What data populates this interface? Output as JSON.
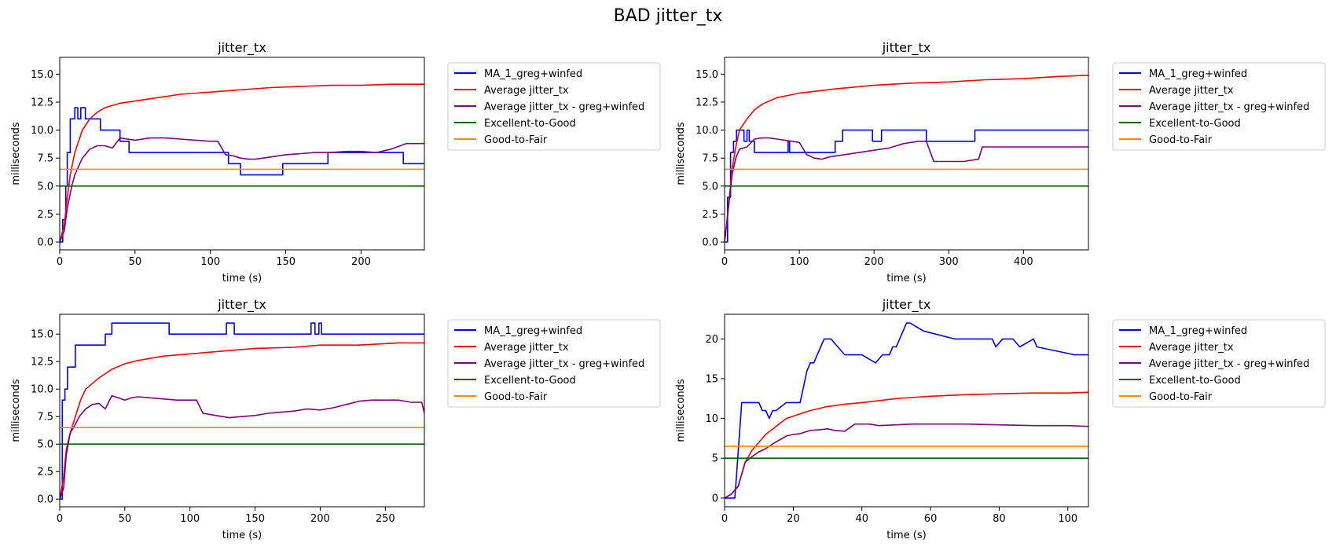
{
  "figure_title": "BAD jitter_tx",
  "colors": {
    "MA_1_greg+winfed": "#0000ff",
    "Average jitter_tx": "#ff0000",
    "Average jitter_tx - greg+winfed": "#800080",
    "Excellent-to-Good": "#006400",
    "Good-to-Fair": "#ff8c00"
  },
  "chart_data": [
    {
      "type": "line",
      "title": "jitter_tx",
      "xlabel": "time (s)",
      "ylabel": "milliseconds",
      "xlim": [
        0,
        242
      ],
      "ylim": [
        -0.7,
        16.5
      ],
      "xticks": [
        0,
        50,
        100,
        150,
        200
      ],
      "yticks": [
        "0.0",
        "2.5",
        "5.0",
        "7.5",
        "10.0",
        "12.5",
        "15.0"
      ],
      "grid": false,
      "legend": "outside-right",
      "series": [
        {
          "name": "MA_1_greg+winfed",
          "x": [
            0,
            2,
            2,
            4,
            4,
            5,
            5,
            7,
            7,
            10,
            10,
            12,
            12,
            14,
            14,
            15,
            15,
            17,
            17,
            22,
            22,
            27,
            27,
            40,
            40,
            46,
            46,
            100,
            100,
            112,
            112,
            120,
            120,
            148,
            148,
            178,
            178,
            215,
            215,
            228,
            228,
            242
          ],
          "y": [
            0,
            0,
            2,
            2,
            5,
            5,
            8,
            8,
            11,
            11,
            12,
            12,
            11,
            11,
            12,
            12,
            12,
            12,
            11,
            11,
            11,
            11,
            10,
            10,
            9,
            9,
            8,
            8,
            8,
            8,
            7,
            7,
            6,
            6,
            7,
            7,
            8,
            8,
            8,
            8,
            7,
            7
          ]
        },
        {
          "name": "Average jitter_tx",
          "x": [
            0,
            3,
            5,
            7,
            10,
            15,
            20,
            25,
            30,
            40,
            50,
            60,
            70,
            80,
            100,
            120,
            140,
            160,
            180,
            200,
            220,
            242
          ],
          "y": [
            0,
            1.5,
            4,
            6,
            8,
            10,
            11,
            11.6,
            12,
            12.4,
            12.6,
            12.8,
            13,
            13.2,
            13.4,
            13.6,
            13.8,
            13.9,
            14,
            14,
            14.1,
            14.1
          ]
        },
        {
          "name": "Average jitter_tx - greg+winfed",
          "x": [
            0,
            3,
            5,
            8,
            10,
            15,
            20,
            25,
            30,
            35,
            40,
            45,
            50,
            60,
            70,
            80,
            90,
            100,
            105,
            110,
            115,
            120,
            125,
            130,
            140,
            150,
            160,
            170,
            180,
            190,
            200,
            210,
            220,
            230,
            242
          ],
          "y": [
            0,
            1,
            3,
            5,
            6,
            7.5,
            8.3,
            8.6,
            8.6,
            8.4,
            9.3,
            9.2,
            9.1,
            9.3,
            9.3,
            9.2,
            9.1,
            9.0,
            9.0,
            7.8,
            7.7,
            7.5,
            7.4,
            7.4,
            7.6,
            7.8,
            7.9,
            8.0,
            8.0,
            8.1,
            8.1,
            8.0,
            8.3,
            8.8,
            8.8
          ]
        },
        {
          "name": "Excellent-to-Good",
          "x": [
            0,
            242
          ],
          "y": [
            5,
            5
          ]
        },
        {
          "name": "Good-to-Fair",
          "x": [
            0,
            242
          ],
          "y": [
            6.5,
            6.5
          ]
        }
      ]
    },
    {
      "type": "line",
      "title": "jitter_tx",
      "xlabel": "time (s)",
      "ylabel": "milliseconds",
      "xlim": [
        0,
        487
      ],
      "ylim": [
        -0.7,
        16.5
      ],
      "xticks": [
        0,
        100,
        200,
        300,
        400
      ],
      "yticks": [
        "0.0",
        "2.5",
        "5.0",
        "7.5",
        "10.0",
        "12.5",
        "15.0"
      ],
      "grid": false,
      "legend": "outside-right",
      "series": [
        {
          "name": "MA_1_greg+winfed",
          "x": [
            0,
            4,
            4,
            8,
            8,
            12,
            12,
            16,
            16,
            26,
            26,
            30,
            30,
            33,
            33,
            40,
            40,
            46,
            46,
            60,
            60,
            85,
            85,
            87,
            87,
            110,
            110,
            148,
            148,
            158,
            158,
            198,
            198,
            210,
            210,
            270,
            270,
            335,
            335,
            487
          ],
          "y": [
            0,
            0,
            4,
            4,
            8,
            8,
            9,
            9,
            10,
            10,
            9,
            9,
            10,
            10,
            9,
            9,
            8,
            8,
            8,
            8,
            8,
            8,
            9,
            9,
            8,
            8,
            8,
            8,
            9,
            9,
            10,
            10,
            9,
            9,
            10,
            10,
            9,
            9,
            10,
            10
          ]
        },
        {
          "name": "Average jitter_tx",
          "x": [
            0,
            5,
            10,
            15,
            20,
            30,
            40,
            50,
            70,
            100,
            150,
            200,
            250,
            300,
            350,
            400,
            450,
            487
          ],
          "y": [
            0,
            3,
            6.5,
            8.5,
            10,
            11,
            11.8,
            12.3,
            12.9,
            13.3,
            13.7,
            14,
            14.2,
            14.3,
            14.5,
            14.6,
            14.8,
            14.9
          ]
        },
        {
          "name": "Average jitter_tx - greg+winfed",
          "x": [
            0,
            5,
            10,
            15,
            20,
            30,
            40,
            50,
            60,
            70,
            80,
            90,
            100,
            110,
            120,
            130,
            140,
            150,
            160,
            180,
            200,
            220,
            240,
            260,
            270,
            280,
            300,
            320,
            340,
            345,
            360,
            400,
            440,
            487
          ],
          "y": [
            0,
            3,
            6,
            7.5,
            8.3,
            8.5,
            9.2,
            9.3,
            9.3,
            9.2,
            9.1,
            9.0,
            8.9,
            7.8,
            7.5,
            7.4,
            7.6,
            7.7,
            7.8,
            8.0,
            8.2,
            8.4,
            8.8,
            9.0,
            9.0,
            7.2,
            7.2,
            7.2,
            7.4,
            8.5,
            8.5,
            8.5,
            8.5,
            8.5
          ]
        },
        {
          "name": "Excellent-to-Good",
          "x": [
            0,
            487
          ],
          "y": [
            5,
            5
          ]
        },
        {
          "name": "Good-to-Fair",
          "x": [
            0,
            487
          ],
          "y": [
            6.5,
            6.5
          ]
        }
      ]
    },
    {
      "type": "line",
      "title": "jitter_tx",
      "xlabel": "time (s)",
      "ylabel": "milliseconds",
      "xlim": [
        0,
        280
      ],
      "ylim": [
        -0.7,
        16.8
      ],
      "xticks": [
        0,
        50,
        100,
        150,
        200,
        250
      ],
      "yticks": [
        "0.0",
        "2.5",
        "5.0",
        "7.5",
        "10.0",
        "12.5",
        "15.0"
      ],
      "grid": false,
      "legend": "outside-right",
      "series": [
        {
          "name": "MA_1_greg+winfed",
          "x": [
            0,
            2,
            2,
            4,
            4,
            6,
            6,
            12,
            12,
            17,
            17,
            23,
            23,
            35,
            35,
            40,
            40,
            84,
            84,
            128,
            128,
            134,
            134,
            193,
            193,
            196,
            196,
            199,
            199,
            201,
            201,
            280
          ],
          "y": [
            0,
            0,
            9,
            9,
            10,
            10,
            12,
            12,
            14,
            14,
            14,
            14,
            14,
            14,
            15,
            15,
            16,
            16,
            15,
            15,
            16,
            16,
            15,
            15,
            16,
            16,
            15,
            15,
            16,
            16,
            15,
            15
          ]
        },
        {
          "name": "Average jitter_tx",
          "x": [
            0,
            3,
            5,
            8,
            12,
            16,
            20,
            25,
            30,
            40,
            50,
            60,
            80,
            100,
            130,
            150,
            180,
            200,
            230,
            260,
            280
          ],
          "y": [
            0,
            2,
            4.5,
            6,
            7.5,
            9,
            10,
            10.5,
            11,
            11.8,
            12.3,
            12.6,
            13,
            13.2,
            13.5,
            13.7,
            13.8,
            14,
            14,
            14.2,
            14.2
          ]
        },
        {
          "name": "Average jitter_tx - greg+winfed",
          "x": [
            0,
            3,
            5,
            8,
            12,
            15,
            20,
            25,
            30,
            35,
            40,
            45,
            50,
            55,
            60,
            70,
            80,
            90,
            100,
            105,
            110,
            120,
            130,
            140,
            150,
            160,
            170,
            180,
            190,
            200,
            210,
            220,
            230,
            240,
            250,
            260,
            270,
            278,
            280
          ],
          "y": [
            0,
            1,
            4,
            6,
            6.8,
            7.5,
            8.2,
            8.6,
            8.7,
            8.2,
            9.4,
            9.2,
            9.0,
            9.2,
            9.3,
            9.2,
            9.1,
            9.0,
            9.0,
            9.0,
            7.8,
            7.6,
            7.4,
            7.5,
            7.6,
            7.8,
            7.9,
            8.0,
            8.2,
            8.1,
            8.3,
            8.6,
            8.9,
            9.0,
            9.0,
            9.0,
            8.8,
            8.8,
            7.8
          ]
        },
        {
          "name": "Excellent-to-Good",
          "x": [
            0,
            280
          ],
          "y": [
            5,
            5
          ]
        },
        {
          "name": "Good-to-Fair",
          "x": [
            0,
            280
          ],
          "y": [
            6.5,
            6.5
          ]
        }
      ]
    },
    {
      "type": "line",
      "title": "jitter_tx",
      "xlabel": "time (s)",
      "ylabel": "milliseconds",
      "xlim": [
        0,
        106
      ],
      "ylim": [
        -1.1,
        23.1
      ],
      "xticks": [
        0,
        20,
        40,
        60,
        80,
        100
      ],
      "yticks": [
        "0",
        "5",
        "10",
        "15",
        "20"
      ],
      "grid": false,
      "legend": "outside-right",
      "series": [
        {
          "name": "MA_1_greg+winfed",
          "x": [
            0,
            3,
            5,
            5,
            10,
            10,
            11,
            11,
            12,
            12,
            13,
            13,
            14,
            14,
            15,
            15,
            18,
            18,
            22,
            22,
            23,
            23,
            24,
            24,
            25,
            25,
            26,
            26,
            27,
            27,
            28,
            28,
            29,
            29,
            31,
            31,
            33,
            33,
            35,
            35,
            40,
            40,
            44,
            44,
            46,
            46,
            48,
            48,
            49,
            49,
            50,
            50,
            51,
            51,
            53,
            53,
            54,
            54,
            58,
            58,
            67,
            67,
            78,
            78,
            79,
            79,
            81,
            81,
            84,
            84,
            86,
            86,
            90,
            90,
            91,
            91,
            102,
            102,
            106
          ],
          "y": [
            0,
            0,
            12,
            12,
            12,
            12,
            11,
            11,
            11,
            11,
            10,
            10,
            11,
            11,
            11,
            11,
            12,
            12,
            12,
            12,
            14,
            14,
            16,
            16,
            17,
            17,
            17,
            17,
            18,
            18,
            19,
            19,
            20,
            20,
            20,
            20,
            19,
            19,
            18,
            18,
            18,
            18,
            17,
            17,
            18,
            18,
            18,
            18,
            19,
            19,
            19,
            19,
            20,
            20,
            22,
            22,
            22,
            22,
            21,
            21,
            20,
            20,
            20,
            20,
            19,
            19,
            20,
            20,
            20,
            20,
            19,
            19,
            20,
            20,
            19,
            19,
            18,
            18,
            18
          ]
        },
        {
          "name": "Average jitter_tx",
          "x": [
            0,
            2,
            4,
            5,
            6,
            8,
            10,
            12,
            15,
            18,
            20,
            25,
            30,
            35,
            40,
            50,
            60,
            70,
            80,
            90,
            100,
            106
          ],
          "y": [
            0,
            0.5,
            1.5,
            3,
            4.5,
            6,
            7,
            8,
            9,
            10,
            10.3,
            11,
            11.5,
            11.8,
            12,
            12.5,
            12.8,
            13,
            13.1,
            13.2,
            13.2,
            13.3
          ]
        },
        {
          "name": "Average jitter_tx - greg+winfed",
          "x": [
            0,
            2,
            4,
            5,
            6,
            8,
            10,
            12,
            14,
            16,
            18,
            20,
            22,
            25,
            28,
            30,
            32,
            35,
            38,
            40,
            42,
            45,
            50,
            55,
            60,
            70,
            80,
            90,
            100,
            106
          ],
          "y": [
            0,
            0.5,
            1.5,
            3,
            4.5,
            5.2,
            5.8,
            6.2,
            6.8,
            7.3,
            7.8,
            8.0,
            8.1,
            8.5,
            8.6,
            8.7,
            8.5,
            8.4,
            9.3,
            9.3,
            9.3,
            9.1,
            9.2,
            9.3,
            9.3,
            9.3,
            9.2,
            9.1,
            9.1,
            9.0
          ]
        },
        {
          "name": "Excellent-to-Good",
          "x": [
            0,
            106
          ],
          "y": [
            5,
            5
          ]
        },
        {
          "name": "Good-to-Fair",
          "x": [
            0,
            106
          ],
          "y": [
            6.5,
            6.5
          ]
        }
      ]
    }
  ]
}
